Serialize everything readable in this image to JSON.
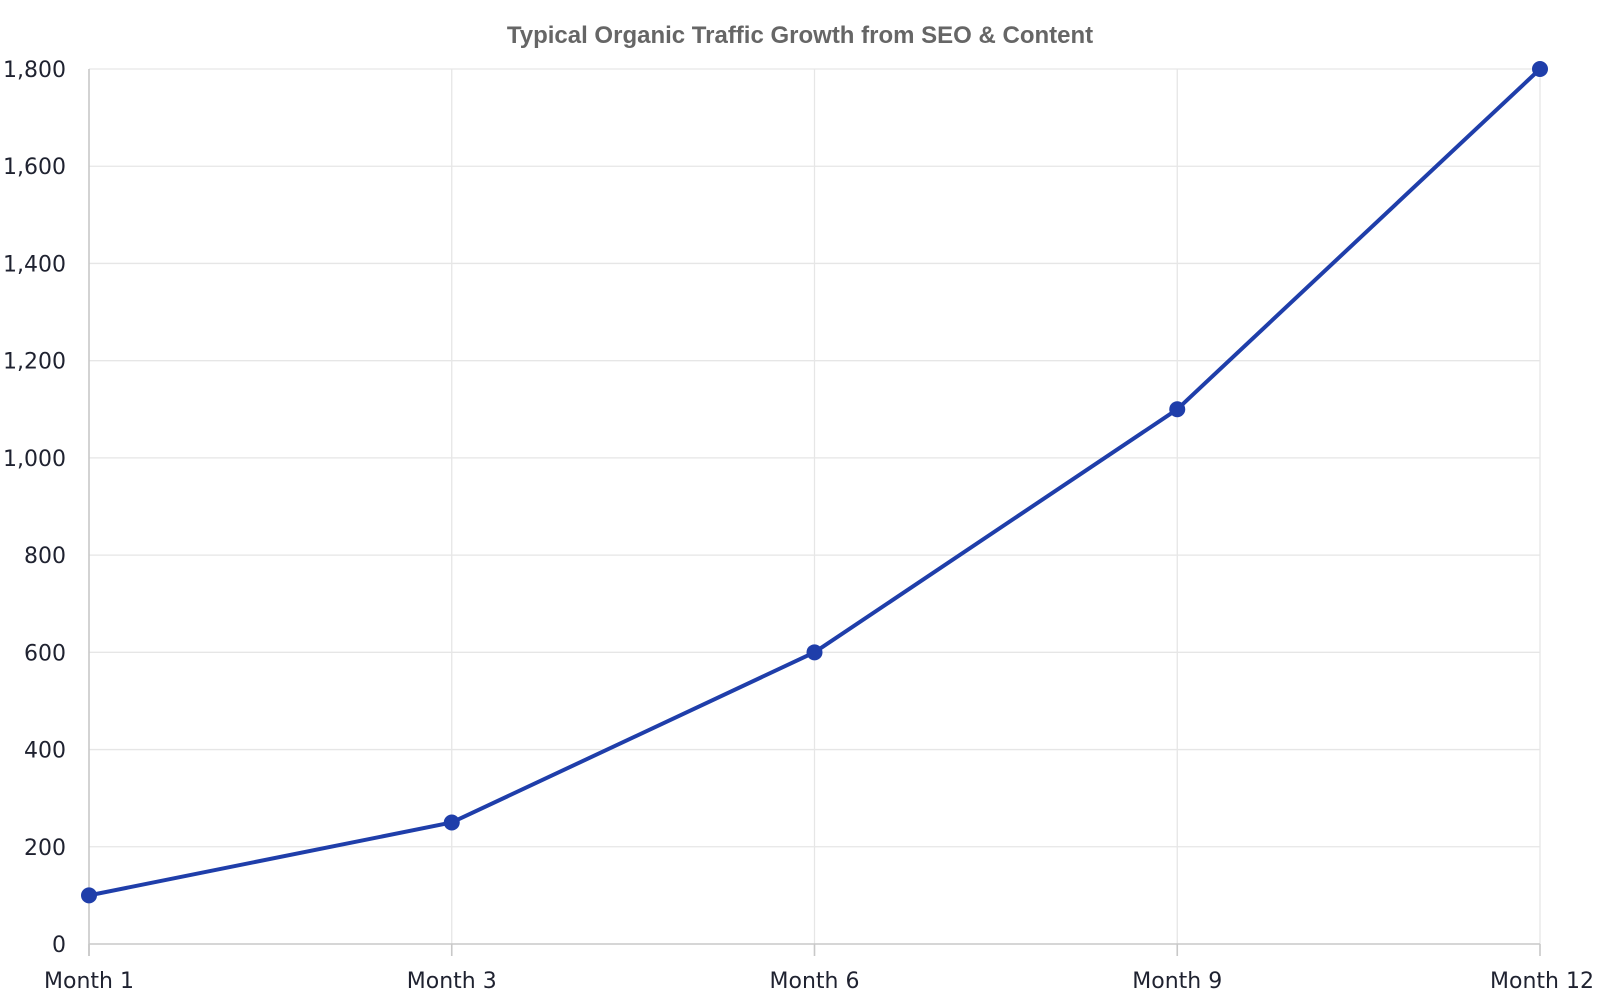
{
  "colors": {
    "series": "#1f3eaa",
    "title": "#666666",
    "grid": "#e6e6e6",
    "axis": "#c8c8c8",
    "tick_text": "#1f2230"
  },
  "chart_data": {
    "type": "line",
    "title": "Typical Organic Traffic Growth from SEO & Content",
    "xlabel": "",
    "ylabel": "",
    "categories": [
      "Month 1",
      "Month 3",
      "Month 6",
      "Month 9",
      "Month 12"
    ],
    "series": [
      {
        "values": [
          100,
          250,
          600,
          1100,
          1800
        ]
      }
    ],
    "ylim": [
      0,
      1800
    ],
    "y_ticks": [
      0,
      200,
      400,
      600,
      800,
      1000,
      1200,
      1400,
      1600,
      1800
    ],
    "y_tick_labels": [
      "0",
      "200",
      "400",
      "600",
      "800",
      "1,000",
      "1,200",
      "1,400",
      "1,600",
      "1,800"
    ],
    "grid": true,
    "legend": "none",
    "markers": true
  }
}
